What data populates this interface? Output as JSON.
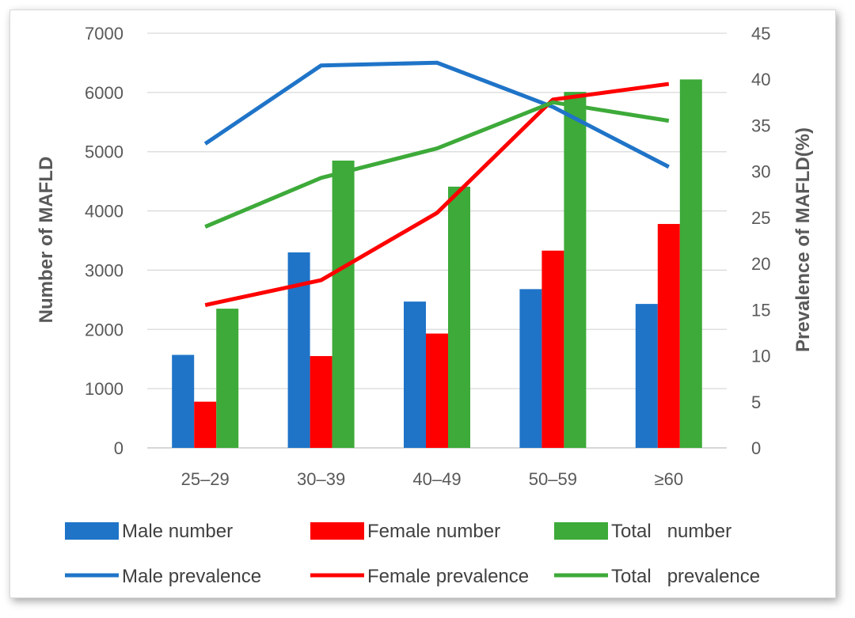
{
  "chart_data": {
    "type": "bar",
    "categories": [
      "25–29",
      "30–39",
      "40–49",
      "50–59",
      "≥60"
    ],
    "bar_series": [
      {
        "name": "Male number",
        "color": "#1f74c8",
        "values": [
          1570,
          3300,
          2470,
          2680,
          2430
        ]
      },
      {
        "name": "Female number",
        "color": "#ff0000",
        "values": [
          780,
          1550,
          1930,
          3330,
          3780
        ]
      },
      {
        "name": "Total   number",
        "color": "#3daa39",
        "values": [
          2350,
          4850,
          4410,
          6010,
          6220
        ]
      }
    ],
    "line_series": [
      {
        "name": "Male prevalence",
        "color": "#1f74c8",
        "values": [
          33.0,
          41.5,
          41.8,
          37.0,
          30.5
        ]
      },
      {
        "name": "Female prevalence",
        "color": "#ff0000",
        "values": [
          15.5,
          18.2,
          25.5,
          37.8,
          39.5
        ]
      },
      {
        "name": "Total   prevalence",
        "color": "#3daa39",
        "values": [
          24.0,
          29.3,
          32.5,
          37.5,
          35.5
        ]
      }
    ],
    "ylabel": "Number of MAFLD",
    "y2label": "Prevalence of MAFLD(%)",
    "ylim": [
      0,
      7000
    ],
    "yticks": [
      "0",
      "1000",
      "2000",
      "3000",
      "4000",
      "5000",
      "6000",
      "7000"
    ],
    "y2lim": [
      0,
      45
    ],
    "y2ticks": [
      "0",
      "5",
      "10",
      "15",
      "20",
      "25",
      "30",
      "35",
      "40",
      "45"
    ],
    "grid": true,
    "legend_position": "bottom"
  }
}
